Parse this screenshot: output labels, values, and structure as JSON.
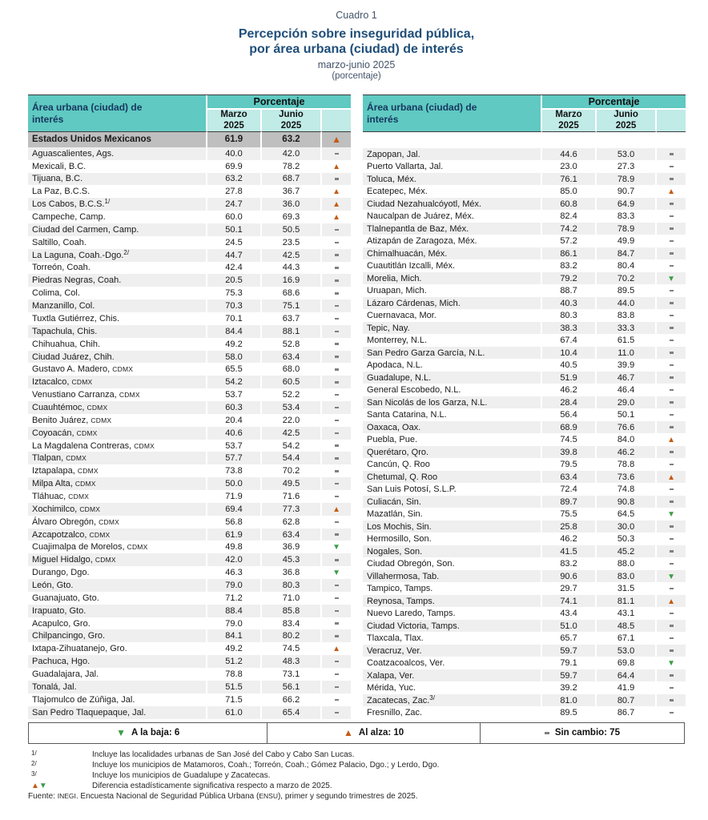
{
  "title": {
    "kicker": "Cuadro 1",
    "line1": "Percepción sobre inseguridad pública,",
    "line2": "por área urbana (ciudad) de interés",
    "period": "marzo-junio 2025",
    "unit": "(porcentaje)"
  },
  "table": {
    "name_header": "Área urbana (ciudad) de\ninterés",
    "group_header": "Porcentaje",
    "march_header": "Marzo\n2025",
    "june_header": "Junio\n2025",
    "national": {
      "name": "Estados Unidos Mexicanos",
      "march": "61.9",
      "june": "63.2",
      "change": "up"
    },
    "left_rows": [
      {
        "n": "Aguascalientes, Ags.",
        "m": "40.0",
        "j": "42.0",
        "c": "same"
      },
      {
        "n": "Mexicali, B.C.",
        "m": "69.9",
        "j": "78.2",
        "c": "up"
      },
      {
        "n": "Tijuana, B.C.",
        "m": "63.2",
        "j": "68.7",
        "c": "same"
      },
      {
        "n": "La Paz, B.C.S.",
        "m": "27.8",
        "j": "36.7",
        "c": "up"
      },
      {
        "n": "Los Cabos, B.C.S.",
        "sup": "1/",
        "m": "24.7",
        "j": "36.0",
        "c": "up"
      },
      {
        "n": "Campeche, Camp.",
        "m": "60.0",
        "j": "69.3",
        "c": "up"
      },
      {
        "n": "Ciudad del Carmen, Camp.",
        "m": "50.1",
        "j": "50.5",
        "c": "same"
      },
      {
        "n": "Saltillo, Coah.",
        "m": "24.5",
        "j": "23.5",
        "c": "same"
      },
      {
        "n": "La Laguna, Coah.-Dgo.",
        "sup": "2/",
        "m": "44.7",
        "j": "42.5",
        "c": "same"
      },
      {
        "n": "Torreón, Coah.",
        "m": "42.4",
        "j": "44.3",
        "c": "same"
      },
      {
        "n": "Piedras Negras, Coah.",
        "m": "20.5",
        "j": "16.9",
        "c": "same"
      },
      {
        "n": "Colima, Col.",
        "m": "75.3",
        "j": "68.6",
        "c": "same"
      },
      {
        "n": "Manzanillo, Col.",
        "m": "70.3",
        "j": "75.1",
        "c": "same"
      },
      {
        "n": "Tuxtla Gutiérrez, Chis.",
        "m": "70.1",
        "j": "63.7",
        "c": "same"
      },
      {
        "n": "Tapachula, Chis.",
        "m": "84.4",
        "j": "88.1",
        "c": "same"
      },
      {
        "n": "Chihuahua, Chih.",
        "m": "49.2",
        "j": "52.8",
        "c": "same"
      },
      {
        "n": "Ciudad Juárez, Chih.",
        "m": "58.0",
        "j": "63.4",
        "c": "same"
      },
      {
        "n": "Gustavo A. Madero,",
        "sc": "CDMX",
        "m": "65.5",
        "j": "68.0",
        "c": "same"
      },
      {
        "n": "Iztacalco,",
        "sc": "CDMX",
        "m": "54.2",
        "j": "60.5",
        "c": "same"
      },
      {
        "n": "Venustiano Carranza,",
        "sc": "CDMX",
        "m": "53.7",
        "j": "52.2",
        "c": "same"
      },
      {
        "n": "Cuauhtémoc,",
        "sc": "CDMX",
        "m": "60.3",
        "j": "53.4",
        "c": "same"
      },
      {
        "n": "Benito Juárez,",
        "sc": "CDMX",
        "m": "20.4",
        "j": "22.0",
        "c": "same"
      },
      {
        "n": "Coyoacán,",
        "sc": "CDMX",
        "m": "40.6",
        "j": "42.5",
        "c": "same"
      },
      {
        "n": "La Magdalena Contreras,",
        "sc": "CDMX",
        "m": "53.7",
        "j": "54.2",
        "c": "same"
      },
      {
        "n": "Tlalpan,",
        "sc": "CDMX",
        "m": "57.7",
        "j": "54.4",
        "c": "same"
      },
      {
        "n": "Iztapalapa,",
        "sc": "CDMX",
        "m": "73.8",
        "j": "70.2",
        "c": "same"
      },
      {
        "n": "Milpa Alta,",
        "sc": "CDMX",
        "m": "50.0",
        "j": "49.5",
        "c": "same"
      },
      {
        "n": "Tláhuac,",
        "sc": "CDMX",
        "m": "71.9",
        "j": "71.6",
        "c": "same"
      },
      {
        "n": "Xochimilco,",
        "sc": "CDMX",
        "m": "69.4",
        "j": "77.3",
        "c": "up"
      },
      {
        "n": "Álvaro Obregón,",
        "sc": "CDMX",
        "m": "56.8",
        "j": "62.8",
        "c": "same"
      },
      {
        "n": "Azcapotzalco,",
        "sc": "CDMX",
        "m": "61.9",
        "j": "63.4",
        "c": "same"
      },
      {
        "n": "Cuajimalpa de Morelos,",
        "sc": "CDMX",
        "m": "49.8",
        "j": "36.9",
        "c": "down"
      },
      {
        "n": "Miguel Hidalgo,",
        "sc": "CDMX",
        "m": "42.0",
        "j": "45.3",
        "c": "same"
      },
      {
        "n": "Durango, Dgo.",
        "m": "46.3",
        "j": "36.8",
        "c": "down"
      },
      {
        "n": "León, Gto.",
        "m": "79.0",
        "j": "80.3",
        "c": "same"
      },
      {
        "n": "Guanajuato, Gto.",
        "m": "71.2",
        "j": "71.0",
        "c": "same"
      },
      {
        "n": "Irapuato, Gto.",
        "m": "88.4",
        "j": "85.8",
        "c": "same"
      },
      {
        "n": "Acapulco, Gro.",
        "m": "79.0",
        "j": "83.4",
        "c": "same"
      },
      {
        "n": "Chilpancingo, Gro.",
        "m": "84.1",
        "j": "80.2",
        "c": "same"
      },
      {
        "n": "Ixtapa-Zihuatanejo, Gro.",
        "m": "49.2",
        "j": "74.5",
        "c": "up"
      },
      {
        "n": "Pachuca, Hgo.",
        "m": "51.2",
        "j": "48.3",
        "c": "same"
      },
      {
        "n": "Guadalajara, Jal.",
        "m": "78.8",
        "j": "73.1",
        "c": "same"
      },
      {
        "n": "Tonalá, Jal.",
        "m": "51.5",
        "j": "56.1",
        "c": "same"
      },
      {
        "n": "Tlajomulco de Zúñiga, Jal.",
        "m": "71.5",
        "j": "66.2",
        "c": "same"
      },
      {
        "n": "San Pedro Tlaquepaque, Jal.",
        "m": "61.0",
        "j": "65.4",
        "c": "same"
      }
    ],
    "right_rows": [
      {
        "n": "Zapopan, Jal.",
        "m": "44.6",
        "j": "53.0",
        "c": "same"
      },
      {
        "n": "Puerto Vallarta, Jal.",
        "m": "23.0",
        "j": "27.3",
        "c": "same"
      },
      {
        "n": "Toluca, Méx.",
        "m": "76.1",
        "j": "78.9",
        "c": "same"
      },
      {
        "n": "Ecatepec, Méx.",
        "m": "85.0",
        "j": "90.7",
        "c": "up"
      },
      {
        "n": "Ciudad Nezahualcóyotl, Méx.",
        "m": "60.8",
        "j": "64.9",
        "c": "same"
      },
      {
        "n": "Naucalpan de Juárez, Méx.",
        "m": "82.4",
        "j": "83.3",
        "c": "same"
      },
      {
        "n": "Tlalnepantla de Baz, Méx.",
        "m": "74.2",
        "j": "78.9",
        "c": "same"
      },
      {
        "n": "Atizapán de Zaragoza, Méx.",
        "m": "57.2",
        "j": "49.9",
        "c": "same"
      },
      {
        "n": "Chimalhuacán, Méx.",
        "m": "86.1",
        "j": "84.7",
        "c": "same"
      },
      {
        "n": "Cuautitlán Izcalli, Méx.",
        "m": "83.2",
        "j": "80.4",
        "c": "same"
      },
      {
        "n": "Morelia, Mich.",
        "m": "79.2",
        "j": "70.2",
        "c": "down"
      },
      {
        "n": "Uruapan, Mich.",
        "m": "88.7",
        "j": "89.5",
        "c": "same"
      },
      {
        "n": "Lázaro Cárdenas, Mich.",
        "m": "40.3",
        "j": "44.0",
        "c": "same"
      },
      {
        "n": "Cuernavaca, Mor.",
        "m": "80.3",
        "j": "83.8",
        "c": "same"
      },
      {
        "n": "Tepic, Nay.",
        "m": "38.3",
        "j": "33.3",
        "c": "same"
      },
      {
        "n": "Monterrey, N.L.",
        "m": "67.4",
        "j": "61.5",
        "c": "same"
      },
      {
        "n": "San Pedro Garza García, N.L.",
        "m": "10.4",
        "j": "11.0",
        "c": "same"
      },
      {
        "n": "Apodaca, N.L.",
        "m": "40.5",
        "j": "39.9",
        "c": "same"
      },
      {
        "n": "Guadalupe, N.L.",
        "m": "51.9",
        "j": "46.7",
        "c": "same"
      },
      {
        "n": "General Escobedo, N.L.",
        "m": "46.2",
        "j": "46.4",
        "c": "same"
      },
      {
        "n": "San Nicolás de los Garza, N.L.",
        "m": "28.4",
        "j": "29.0",
        "c": "same"
      },
      {
        "n": "Santa Catarina, N.L.",
        "m": "56.4",
        "j": "50.1",
        "c": "same"
      },
      {
        "n": "Oaxaca, Oax.",
        "m": "68.9",
        "j": "76.6",
        "c": "same"
      },
      {
        "n": "Puebla, Pue.",
        "m": "74.5",
        "j": "84.0",
        "c": "up"
      },
      {
        "n": "Querétaro, Qro.",
        "m": "39.8",
        "j": "46.2",
        "c": "same"
      },
      {
        "n": "Cancún, Q. Roo",
        "m": "79.5",
        "j": "78.8",
        "c": "same"
      },
      {
        "n": "Chetumal, Q. Roo",
        "m": "63.4",
        "j": "73.6",
        "c": "up"
      },
      {
        "n": "San Luis Potosí, S.L.P.",
        "m": "72.4",
        "j": "74.8",
        "c": "same"
      },
      {
        "n": "Culiacán, Sin.",
        "m": "89.7",
        "j": "90.8",
        "c": "same"
      },
      {
        "n": "Mazatlán, Sin.",
        "m": "75.5",
        "j": "64.5",
        "c": "down"
      },
      {
        "n": "Los Mochis, Sin.",
        "m": "25.8",
        "j": "30.0",
        "c": "same"
      },
      {
        "n": "Hermosillo, Son.",
        "m": "46.2",
        "j": "50.3",
        "c": "same"
      },
      {
        "n": "Nogales, Son.",
        "m": "41.5",
        "j": "45.2",
        "c": "same"
      },
      {
        "n": "Ciudad Obregón, Son.",
        "m": "83.2",
        "j": "88.0",
        "c": "same"
      },
      {
        "n": "Villahermosa, Tab.",
        "m": "90.6",
        "j": "83.0",
        "c": "down"
      },
      {
        "n": "Tampico, Tamps.",
        "m": "29.7",
        "j": "31.5",
        "c": "same"
      },
      {
        "n": "Reynosa, Tamps.",
        "m": "74.1",
        "j": "81.1",
        "c": "up"
      },
      {
        "n": "Nuevo Laredo, Tamps.",
        "m": "43.4",
        "j": "43.1",
        "c": "same"
      },
      {
        "n": "Ciudad Victoria, Tamps.",
        "m": "51.0",
        "j": "48.5",
        "c": "same"
      },
      {
        "n": "Tlaxcala, Tlax.",
        "m": "65.7",
        "j": "67.1",
        "c": "same"
      },
      {
        "n": "Veracruz, Ver.",
        "m": "59.7",
        "j": "53.0",
        "c": "same"
      },
      {
        "n": "Coatzacoalcos, Ver.",
        "m": "79.1",
        "j": "69.8",
        "c": "down"
      },
      {
        "n": "Xalapa, Ver.",
        "m": "59.7",
        "j": "64.4",
        "c": "same"
      },
      {
        "n": "Mérida, Yuc.",
        "m": "39.2",
        "j": "41.9",
        "c": "same"
      },
      {
        "n": "Zacatecas, Zac.",
        "sup": "3/",
        "m": "81.0",
        "j": "80.7",
        "c": "same"
      },
      {
        "n": "Fresnillo, Zac.",
        "m": "89.5",
        "j": "86.7",
        "c": "same"
      }
    ]
  },
  "legend": {
    "down_symbol": "down",
    "down_label": "A la baja: 6",
    "up_symbol": "up",
    "up_label": "Al alza: 10",
    "same_symbol": "same",
    "same_label": "Sin cambio: 75"
  },
  "footnotes": [
    {
      "marker": "1/",
      "text": "Incluye las localidades urbanas de San José del Cabo y Cabo San Lucas."
    },
    {
      "marker": "2/",
      "text": "Incluye los municipios de Matamoros, Coah.; Torreón, Coah.; Gómez Palacio, Dgo.; y Lerdo, Dgo."
    },
    {
      "marker": "3/",
      "text": "Incluye los municipios de Guadalupe y Zacatecas."
    },
    {
      "marker": "up-down",
      "text": "Diferencia estadísticamente significativa respecto a marzo de 2025."
    }
  ],
  "source": {
    "prefix": "Fuente: ",
    "org": "INEGI",
    "middle": ". Encuesta Nacional de Seguridad Pública Urbana (",
    "survey": "ENSU",
    "suffix": "), primer y segundo trimestres de 2025."
  },
  "colors": {
    "header_teal": "#5FC9C2",
    "header_teal_light": "#C0EBE7",
    "national_gray": "#BFBFBF",
    "row_stripe": "#EFEFEF",
    "up_triangle": "#C55A11",
    "down_triangle": "#3A9D45",
    "no_change_dash": "#7F7F7F",
    "title_blue": "#1F4E79"
  }
}
